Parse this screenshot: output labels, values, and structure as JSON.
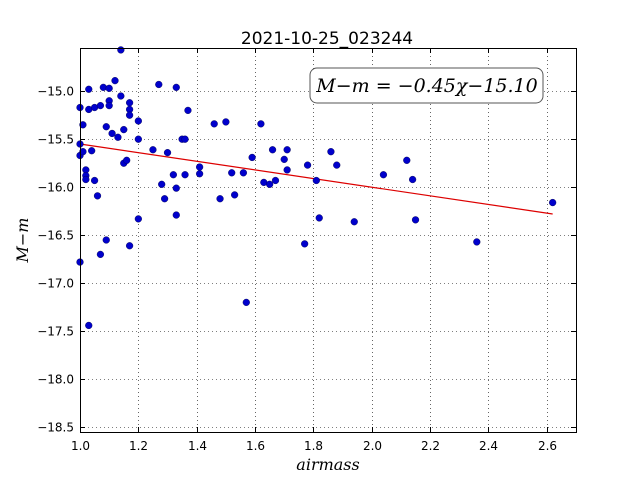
{
  "chart_data": {
    "type": "scatter",
    "title": "2021-10-25_023244",
    "xlabel": "airmass",
    "ylabel": "M−m",
    "xlim": [
      1.0,
      2.7
    ],
    "ylim": [
      -18.55,
      -14.55
    ],
    "y_inverted": true,
    "grid": true,
    "x_ticks": [
      1.0,
      1.2,
      1.4,
      1.6,
      1.8,
      2.0,
      2.2,
      2.4,
      2.6
    ],
    "x_tick_labels": [
      "1.0",
      "1.2",
      "1.4",
      "1.6",
      "1.8",
      "2.0",
      "2.2",
      "2.4",
      "2.6"
    ],
    "y_ticks": [
      -15.0,
      -15.5,
      -16.0,
      -16.5,
      -17.0,
      -17.5,
      -18.0,
      -18.5
    ],
    "y_tick_labels": [
      "−15.0",
      "−15.5",
      "−16.0",
      "−16.5",
      "−17.0",
      "−17.5",
      "−18.0",
      "−18.5"
    ],
    "annotation": "M−m = −0.45χ−15.10",
    "annotation_placement": "top-right",
    "fit": {
      "slope": -0.45,
      "intercept": -15.1,
      "x_range": [
        1.0,
        2.62
      ],
      "color": "#dd0000"
    },
    "point_color": "#0000cc",
    "points": [
      [
        1.0,
        -15.17
      ],
      [
        1.0,
        -15.55
      ],
      [
        1.0,
        -15.67
      ],
      [
        1.0,
        -16.78
      ],
      [
        1.01,
        -15.35
      ],
      [
        1.01,
        -15.63
      ],
      [
        1.02,
        -15.82
      ],
      [
        1.02,
        -15.88
      ],
      [
        1.02,
        -15.92
      ],
      [
        1.03,
        -17.44
      ],
      [
        1.03,
        -14.98
      ],
      [
        1.03,
        -15.19
      ],
      [
        1.04,
        -15.62
      ],
      [
        1.05,
        -15.17
      ],
      [
        1.05,
        -15.93
      ],
      [
        1.06,
        -16.09
      ],
      [
        1.07,
        -15.15
      ],
      [
        1.07,
        -16.7
      ],
      [
        1.08,
        -14.96
      ],
      [
        1.09,
        -15.37
      ],
      [
        1.09,
        -16.55
      ],
      [
        1.1,
        -14.97
      ],
      [
        1.1,
        -15.1
      ],
      [
        1.1,
        -15.15
      ],
      [
        1.11,
        -15.44
      ],
      [
        1.12,
        -14.89
      ],
      [
        1.13,
        -15.48
      ],
      [
        1.14,
        -15.05
      ],
      [
        1.14,
        -14.57
      ],
      [
        1.15,
        -15.4
      ],
      [
        1.15,
        -15.75
      ],
      [
        1.16,
        -15.72
      ],
      [
        1.17,
        -15.12
      ],
      [
        1.17,
        -15.19
      ],
      [
        1.17,
        -15.25
      ],
      [
        1.17,
        -16.61
      ],
      [
        1.2,
        -15.31
      ],
      [
        1.2,
        -15.5
      ],
      [
        1.2,
        -16.33
      ],
      [
        1.25,
        -15.61
      ],
      [
        1.27,
        -14.93
      ],
      [
        1.28,
        -15.97
      ],
      [
        1.29,
        -16.12
      ],
      [
        1.3,
        -15.64
      ],
      [
        1.32,
        -15.87
      ],
      [
        1.33,
        -14.96
      ],
      [
        1.33,
        -16.01
      ],
      [
        1.33,
        -16.29
      ],
      [
        1.35,
        -15.5
      ],
      [
        1.36,
        -15.5
      ],
      [
        1.36,
        -15.87
      ],
      [
        1.37,
        -15.2
      ],
      [
        1.41,
        -15.79
      ],
      [
        1.41,
        -15.86
      ],
      [
        1.46,
        -15.34
      ],
      [
        1.48,
        -16.12
      ],
      [
        1.5,
        -15.32
      ],
      [
        1.52,
        -15.85
      ],
      [
        1.53,
        -16.08
      ],
      [
        1.56,
        -15.85
      ],
      [
        1.57,
        -17.2
      ],
      [
        1.59,
        -15.69
      ],
      [
        1.62,
        -15.34
      ],
      [
        1.63,
        -15.95
      ],
      [
        1.65,
        -15.97
      ],
      [
        1.66,
        -15.61
      ],
      [
        1.67,
        -15.93
      ],
      [
        1.7,
        -15.71
      ],
      [
        1.71,
        -15.61
      ],
      [
        1.71,
        -15.82
      ],
      [
        1.77,
        -16.59
      ],
      [
        1.78,
        -15.77
      ],
      [
        1.81,
        -15.93
      ],
      [
        1.82,
        -16.32
      ],
      [
        1.86,
        -15.63
      ],
      [
        1.88,
        -15.77
      ],
      [
        1.94,
        -16.36
      ],
      [
        2.04,
        -15.87
      ],
      [
        2.12,
        -15.72
      ],
      [
        2.14,
        -15.92
      ],
      [
        2.15,
        -16.34
      ],
      [
        2.36,
        -16.57
      ],
      [
        2.62,
        -16.16
      ]
    ]
  }
}
